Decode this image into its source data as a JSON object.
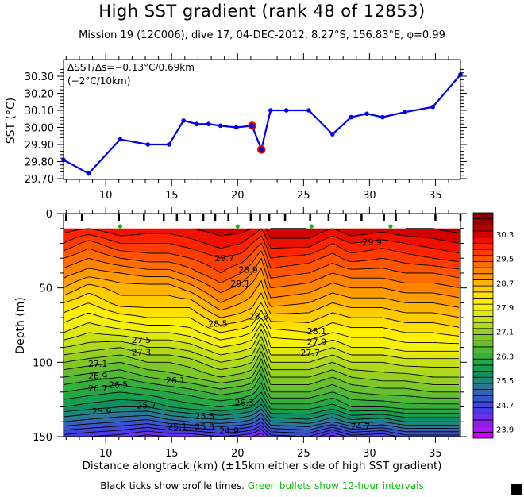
{
  "title": "High SST gradient (rank 48 of 12853)",
  "subtitle": "Mission 19 (12C006),  dive 17,  04-DEC-2012,  8.27°S, 156.83°E,  φ=0.99",
  "footer": {
    "xlabel": "Distance alongtrack (km) (±15km either side of high SST gradient)",
    "note_black": "Black ticks show profile times.",
    "note_green": "Green bullets show 12-hour intervals"
  },
  "colors": {
    "line": "#0000ee",
    "highlight": "#ee0000",
    "green_bullet": "#11bb11"
  },
  "chart_data": [
    {
      "type": "line",
      "title": "",
      "annotation": [
        "ΔSST/Δs=−0.13°C/0.69km",
        "(−2°C/10km)"
      ],
      "xlabel": "",
      "ylabel": "SST (°C)",
      "xlim": [
        6.8,
        36.9
      ],
      "ylim": [
        29.7,
        30.34
      ],
      "xticks": [
        10,
        15,
        20,
        25,
        30,
        35
      ],
      "yticks": [
        29.7,
        29.8,
        29.9,
        30.0,
        30.1,
        30.2,
        30.3
      ],
      "ytick_labels": [
        "29.70",
        "29.80",
        "29.90",
        "30.00",
        "30.10",
        "30.20",
        "30.30"
      ],
      "series": [
        {
          "name": "SST",
          "x": [
            6.8,
            8.7,
            11.1,
            13.2,
            14.8,
            15.9,
            16.9,
            17.8,
            18.7,
            19.9,
            21.1,
            21.8,
            22.5,
            23.7,
            25.4,
            27.2,
            28.6,
            29.8,
            31.0,
            32.7,
            34.8,
            36.9
          ],
          "y": [
            29.81,
            29.73,
            29.93,
            29.9,
            29.9,
            30.04,
            30.02,
            30.02,
            30.01,
            30.0,
            30.01,
            29.87,
            30.1,
            30.1,
            30.1,
            29.96,
            30.06,
            30.08,
            30.06,
            30.09,
            30.12,
            30.31
          ]
        }
      ],
      "highlighted_points": [
        {
          "x": 21.1,
          "y": 30.01
        },
        {
          "x": 21.8,
          "y": 29.87
        }
      ]
    },
    {
      "type": "heatmap",
      "subtype": "filled-contour",
      "title": "",
      "xlabel": "Distance alongtrack (km) (±15km either side of high SST gradient)",
      "ylabel": "Depth (m)",
      "xlim": [
        6.8,
        36.9
      ],
      "ylim": [
        150,
        0
      ],
      "xticks": [
        10,
        15,
        20,
        25,
        30,
        35
      ],
      "yticks": [
        0,
        50,
        100,
        150
      ],
      "colorbar": {
        "min": 23.7,
        "max": 31.1,
        "step": 0.2,
        "tick_labels": [
          "30.3",
          "29.5",
          "28.7",
          "27.9",
          "27.1",
          "26.3",
          "25.5",
          "24.7",
          "23.9"
        ],
        "tick_values": [
          30.3,
          29.5,
          28.7,
          27.9,
          27.1,
          26.3,
          25.5,
          24.7,
          23.9
        ]
      },
      "profile_ticks_km": [
        7.0,
        8.2,
        11.0,
        12.9,
        14.4,
        15.4,
        16.4,
        17.4,
        18.3,
        19.3,
        21.0,
        21.7,
        22.4,
        23.6,
        25.5,
        26.9,
        28.2,
        29.4,
        31.1,
        32.0,
        35.0,
        36.9
      ],
      "green_bullets_km": [
        11.1,
        20.0,
        25.6,
        31.6
      ],
      "depths": [
        10,
        20,
        30,
        40,
        50,
        60,
        70,
        80,
        90,
        100,
        110,
        120,
        130,
        140,
        150
      ],
      "stations_km": [
        6.8,
        8.7,
        11.1,
        13.2,
        14.8,
        16.4,
        18.7,
        20.3,
        21.1,
        21.8,
        22.5,
        25.4,
        27.2,
        28.6,
        31.0,
        32.7,
        34.8,
        36.9
      ],
      "temperature": [
        [
          30.2,
          29.9,
          29.5,
          29.2,
          28.9,
          28.5,
          28.2,
          27.9,
          27.5,
          27.1,
          26.7,
          26.3,
          25.9,
          25.3,
          24.6
        ],
        [
          30.1,
          29.6,
          29.3,
          29.0,
          28.6,
          28.3,
          28.0,
          27.7,
          27.4,
          27.0,
          26.6,
          26.2,
          25.8,
          25.2,
          24.5
        ],
        [
          30.3,
          29.9,
          29.5,
          29.1,
          28.8,
          28.6,
          28.2,
          27.8,
          27.3,
          26.9,
          26.5,
          26.1,
          25.7,
          25.1,
          24.4
        ],
        [
          30.2,
          29.9,
          29.6,
          29.2,
          28.8,
          28.6,
          28.3,
          27.9,
          27.5,
          27.1,
          26.7,
          26.2,
          25.7,
          25.0,
          24.2
        ],
        [
          30.2,
          29.9,
          29.6,
          29.2,
          28.8,
          28.6,
          28.3,
          27.9,
          27.5,
          27.1,
          26.8,
          26.3,
          25.9,
          25.2,
          24.3
        ],
        [
          30.3,
          30.0,
          29.7,
          29.4,
          29.0,
          28.6,
          28.3,
          28.0,
          27.6,
          27.2,
          26.9,
          26.4,
          26.0,
          25.3,
          24.3
        ],
        [
          30.4,
          30.2,
          29.9,
          29.7,
          29.4,
          29.1,
          28.7,
          28.3,
          27.9,
          27.5,
          27.1,
          26.6,
          26.1,
          25.4,
          24.5
        ],
        [
          30.4,
          30.1,
          29.8,
          29.5,
          29.2,
          28.9,
          28.6,
          28.2,
          27.8,
          27.4,
          27.0,
          26.5,
          26.0,
          25.3,
          24.4
        ],
        [
          30.3,
          29.9,
          29.6,
          29.3,
          29.0,
          28.8,
          28.5,
          28.1,
          27.7,
          27.3,
          26.9,
          26.4,
          25.9,
          25.2,
          24.3
        ],
        [
          30.1,
          29.7,
          29.3,
          29.0,
          28.8,
          28.5,
          28.1,
          27.6,
          27.2,
          26.8,
          26.4,
          26.1,
          25.6,
          24.9,
          24.1
        ],
        [
          30.5,
          30.2,
          29.9,
          29.6,
          29.3,
          29.0,
          28.6,
          28.2,
          27.9,
          27.5,
          27.1,
          26.7,
          26.2,
          25.5,
          24.6
        ],
        [
          30.5,
          30.2,
          29.8,
          29.5,
          29.2,
          28.9,
          28.6,
          28.3,
          27.9,
          27.5,
          27.1,
          26.7,
          26.2,
          25.6,
          24.7
        ],
        [
          30.3,
          29.9,
          29.6,
          29.3,
          29.0,
          28.7,
          28.4,
          28.1,
          27.7,
          27.3,
          26.9,
          26.5,
          26.0,
          25.3,
          24.2
        ],
        [
          30.5,
          30.1,
          29.8,
          29.4,
          29.1,
          28.8,
          28.5,
          28.2,
          27.9,
          27.5,
          27.1,
          26.7,
          26.3,
          25.6,
          24.6
        ],
        [
          30.4,
          30.0,
          29.7,
          29.4,
          29.1,
          28.8,
          28.5,
          28.2,
          27.9,
          27.5,
          27.2,
          26.8,
          26.3,
          25.5,
          24.5
        ],
        [
          30.5,
          30.1,
          29.8,
          29.5,
          29.2,
          28.9,
          28.6,
          28.3,
          28.0,
          27.6,
          27.2,
          26.8,
          26.4,
          25.7,
          24.8
        ],
        [
          30.5,
          30.2,
          29.9,
          29.5,
          29.2,
          28.9,
          28.6,
          28.3,
          28.0,
          27.6,
          27.3,
          26.9,
          26.4,
          25.7,
          24.8
        ],
        [
          30.6,
          30.3,
          30.0,
          29.6,
          29.3,
          29.0,
          28.7,
          28.4,
          28.0,
          27.6,
          27.3,
          26.9,
          26.4,
          25.7,
          24.8
        ]
      ],
      "contour_labels": [
        {
          "text": "29.9",
          "x": 30.2,
          "depth": 19
        },
        {
          "text": "29.7",
          "x": 19.0,
          "depth": 30
        },
        {
          "text": "28.5",
          "x": 18.5,
          "depth": 74
        },
        {
          "text": "27.5",
          "x": 12.7,
          "depth": 85
        },
        {
          "text": "27.3",
          "x": 12.7,
          "depth": 90
        },
        {
          "text": "27.1",
          "x": 9.4,
          "depth": 101
        },
        {
          "text": "26.9",
          "x": 9.4,
          "depth": 106
        },
        {
          "text": "26.7",
          "x": 9.4,
          "depth": 111
        },
        {
          "text": "26.5",
          "x": 9.4,
          "depth": 115
        },
        {
          "text": "26.1",
          "x": 15.3,
          "depth": 112
        },
        {
          "text": "25.9",
          "x": 9.7,
          "depth": 133
        },
        {
          "text": "25.7",
          "x": 13.1,
          "depth": 129
        },
        {
          "text": "26.3",
          "x": 20.5,
          "depth": 127
        },
        {
          "text": "25.5",
          "x": 17.5,
          "depth": 136
        },
        {
          "text": "25.3",
          "x": 17.5,
          "depth": 140
        },
        {
          "text": "25.1",
          "x": 17.0,
          "depth": 143
        },
        {
          "text": "24.9",
          "x": 17.0,
          "depth": 146
        },
        {
          "text": "24.7",
          "x": 29.3,
          "depth": 143
        },
        {
          "text": "28.1",
          "x": 26.0,
          "depth": 79
        },
        {
          "text": "27.9",
          "x": 26.0,
          "depth": 83
        },
        {
          "text": "27.7",
          "x": 25.5,
          "depth": 87
        },
        {
          "text": "28.3",
          "x": 21.6,
          "depth": 69
        },
        {
          "text": "29.1",
          "x": 20.2,
          "depth": 47
        },
        {
          "text": "28.9",
          "x": 20.8,
          "depth": 44
        }
      ]
    }
  ]
}
